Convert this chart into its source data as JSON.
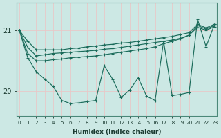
{
  "xlabel": "Humidex (Indice chaleur)",
  "bg_color": "#cce8e4",
  "grid_color": "#e8c8c8",
  "line_color": "#1a6b5a",
  "x_ticks": [
    0,
    1,
    2,
    3,
    4,
    5,
    6,
    7,
    8,
    9,
    10,
    11,
    12,
    13,
    14,
    15,
    16,
    17,
    18,
    19,
    20,
    21,
    22,
    23
  ],
  "y_ticks": [
    20,
    21
  ],
  "ylim": [
    19.6,
    21.45
  ],
  "xlim": [
    -0.3,
    23.3
  ],
  "lines": [
    [
      21.0,
      20.82,
      20.68,
      20.68,
      20.68,
      20.68,
      20.7,
      20.71,
      20.73,
      20.74,
      20.76,
      20.77,
      20.79,
      20.8,
      20.82,
      20.84,
      20.86,
      20.88,
      20.9,
      20.93,
      20.96,
      21.1,
      21.04,
      21.1
    ],
    [
      21.0,
      20.72,
      20.58,
      20.6,
      20.62,
      20.63,
      20.64,
      20.65,
      20.66,
      20.67,
      20.69,
      20.7,
      20.72,
      20.74,
      20.76,
      20.78,
      20.8,
      20.82,
      20.84,
      20.87,
      20.92,
      21.08,
      21.02,
      21.08
    ],
    [
      21.0,
      20.62,
      20.5,
      20.5,
      20.52,
      20.53,
      20.55,
      20.56,
      20.57,
      20.58,
      20.6,
      20.62,
      20.64,
      20.66,
      20.68,
      20.7,
      20.73,
      20.78,
      20.82,
      20.86,
      20.92,
      21.05,
      21.0,
      21.06
    ],
    [
      21.0,
      20.55,
      20.32,
      20.2,
      20.08,
      19.85,
      19.8,
      19.81,
      19.83,
      19.85,
      20.42,
      20.2,
      19.9,
      20.02,
      20.22,
      19.92,
      19.85,
      20.82,
      19.93,
      19.95,
      19.98,
      21.18,
      20.73,
      21.1
    ]
  ]
}
